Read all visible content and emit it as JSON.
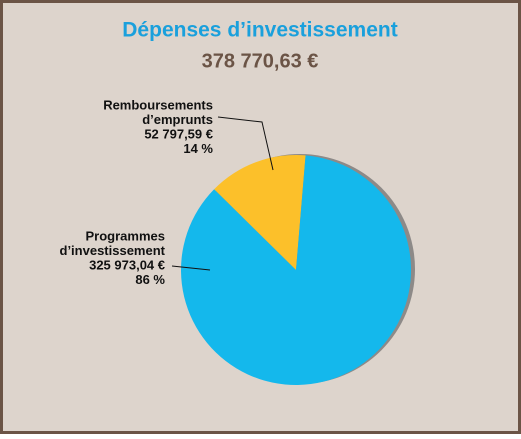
{
  "chart_data": {
    "type": "pie",
    "title": "Dépenses d’investissement",
    "total": 378770.63,
    "total_label": "378 770,63 €",
    "categories": [
      [
        "Remboursements",
        "d’emprunts"
      ],
      [
        "Programmes",
        "d’investissement"
      ]
    ],
    "values": [
      52797.59,
      325973.04
    ],
    "value_labels": [
      "52 797,59 €",
      "325 973,04 €"
    ],
    "percentages": [
      14,
      86
    ],
    "percentage_labels": [
      "14 %",
      "86 %"
    ],
    "colors": [
      "#fcc02a",
      "#14b8ec"
    ]
  }
}
